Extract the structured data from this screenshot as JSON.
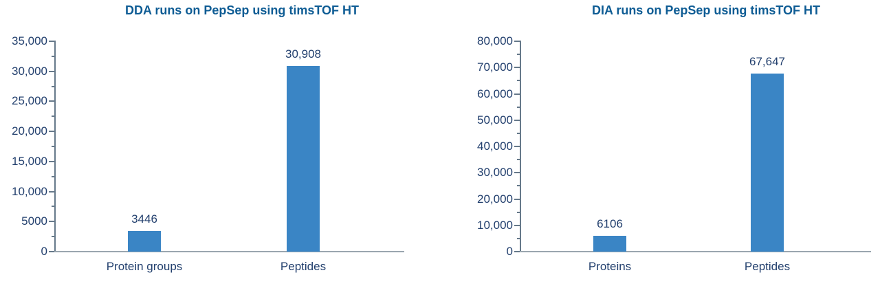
{
  "figure": {
    "background": "#ffffff",
    "colors": {
      "bar": "#3a85c5",
      "title": "#0e5c94",
      "text": "#23406e",
      "axis": "#66798a",
      "baseline": "#9aa6af"
    }
  },
  "chart_data": [
    {
      "type": "bar",
      "title": "DDA runs on PepSep using timsTOF HT",
      "categories": [
        "Protein groups",
        "Peptides"
      ],
      "values": [
        3446,
        30908
      ],
      "value_labels": [
        "3446",
        "30,908"
      ],
      "xlabel": "",
      "ylabel": "",
      "ylim": [
        0,
        35000
      ],
      "y_major_step": 5000,
      "y_minor_step": 2500,
      "y_tick_labels": [
        "0",
        "5000",
        "10,000",
        "15,000",
        "20,000",
        "25,000",
        "30,000",
        "35,000"
      ],
      "grid": false,
      "legend": "none",
      "bar_color": "#3a85c5"
    },
    {
      "type": "bar",
      "title": "DIA runs on PepSep using timsTOF HT",
      "categories": [
        "Proteins",
        "Peptides"
      ],
      "values": [
        6106,
        67647
      ],
      "value_labels": [
        "6106",
        "67,647"
      ],
      "xlabel": "",
      "ylabel": "",
      "ylim": [
        0,
        80000
      ],
      "y_major_step": 10000,
      "y_minor_step": 5000,
      "y_tick_labels": [
        "0",
        "10,000",
        "20,000",
        "30,000",
        "40,000",
        "50,000",
        "60,000",
        "70,000",
        "80,000"
      ],
      "grid": false,
      "legend": "none",
      "bar_color": "#3a85c5"
    }
  ]
}
